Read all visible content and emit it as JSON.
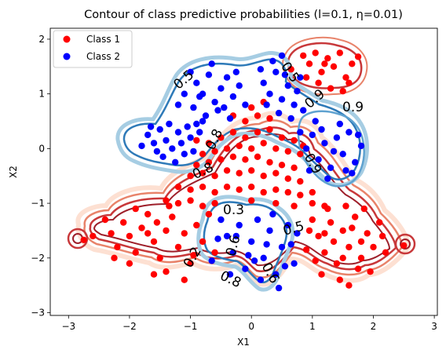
{
  "chart_data": {
    "type": "scatter",
    "title": "Contour of class predictive probabilities (l=0.1, η=0.01)",
    "xlabel": "X1",
    "ylabel": "X2",
    "xlim": [
      -3.3,
      3.05
    ],
    "ylim": [
      -3.05,
      2.2
    ],
    "xticks": [
      -3,
      -2,
      -1,
      0,
      1,
      2,
      3
    ],
    "yticks": [
      -3,
      -2,
      -1,
      0,
      1,
      2
    ],
    "legend_position": "top-left",
    "colors": {
      "class1": "#ff0000",
      "class2": "#0000ff",
      "contour_red": [
        "#fde0d2",
        "#f7b89c",
        "#e8836a",
        "#c8383a",
        "#9e1f2a"
      ],
      "contour_blue": [
        "#dbe9f6",
        "#a6cde3",
        "#5fa2d0",
        "#2e7ab8",
        "#0c4a8c"
      ]
    },
    "series": [
      {
        "name": "Class 1",
        "color": "#ff0000",
        "points": [
          [
            -0.9,
            0.15
          ],
          [
            -0.7,
            0.1
          ],
          [
            -0.5,
            0.2
          ],
          [
            -0.3,
            0.3
          ],
          [
            -0.1,
            0.2
          ],
          [
            0.1,
            0.3
          ],
          [
            0.3,
            0.35
          ],
          [
            0.5,
            0.2
          ],
          [
            0.7,
            0.15
          ],
          [
            0.85,
            0.05
          ],
          [
            -0.8,
            -0.1
          ],
          [
            -0.6,
            -0.05
          ],
          [
            -0.4,
            0.0
          ],
          [
            -0.2,
            0.05
          ],
          [
            0.0,
            0.0
          ],
          [
            0.2,
            0.1
          ],
          [
            0.4,
            0.0
          ],
          [
            0.6,
            -0.05
          ],
          [
            0.8,
            -0.1
          ],
          [
            -0.9,
            -0.3
          ],
          [
            -0.7,
            -0.25
          ],
          [
            -0.5,
            -0.2
          ],
          [
            -0.3,
            -0.15
          ],
          [
            -0.1,
            -0.2
          ],
          [
            0.1,
            -0.15
          ],
          [
            0.3,
            -0.25
          ],
          [
            0.5,
            -0.3
          ],
          [
            0.7,
            -0.35
          ],
          [
            -1.0,
            -0.5
          ],
          [
            -0.8,
            -0.45
          ],
          [
            -0.6,
            -0.5
          ],
          [
            -0.4,
            -0.4
          ],
          [
            -0.2,
            -0.45
          ],
          [
            0.0,
            -0.4
          ],
          [
            0.2,
            -0.5
          ],
          [
            0.4,
            -0.45
          ],
          [
            0.6,
            -0.55
          ],
          [
            0.8,
            -0.6
          ],
          [
            -1.2,
            -0.7
          ],
          [
            -1.0,
            -0.75
          ],
          [
            -0.8,
            -0.7
          ],
          [
            -0.6,
            -0.8
          ],
          [
            -0.4,
            -0.7
          ],
          [
            -0.2,
            -0.75
          ],
          [
            0.0,
            -0.7
          ],
          [
            0.2,
            -0.8
          ],
          [
            0.4,
            -0.75
          ],
          [
            0.6,
            -0.8
          ],
          [
            0.8,
            -0.85
          ],
          [
            1.0,
            -0.8
          ],
          [
            -1.4,
            -0.95
          ],
          [
            -1.2,
            -1.0
          ],
          [
            -1.0,
            -0.95
          ],
          [
            -0.8,
            -1.05
          ],
          [
            -0.6,
            -1.0
          ],
          [
            0.0,
            -0.95
          ],
          [
            0.4,
            -1.0
          ],
          [
            0.7,
            -1.05
          ],
          [
            1.0,
            -1.0
          ],
          [
            1.2,
            -1.05
          ],
          [
            -0.1,
            0.5
          ],
          [
            0.1,
            0.6
          ],
          [
            0.3,
            0.55
          ],
          [
            -0.3,
            0.6
          ],
          [
            0.0,
            0.75
          ],
          [
            0.2,
            0.85
          ],
          [
            -2.6,
            -1.6
          ],
          [
            -2.4,
            -1.3
          ],
          [
            -2.3,
            -1.55
          ],
          [
            -2.2,
            -1.8
          ],
          [
            -2.1,
            -1.35
          ],
          [
            -2.0,
            -1.6
          ],
          [
            -1.9,
            -1.9
          ],
          [
            -1.8,
            -1.45
          ],
          [
            -1.7,
            -1.2
          ],
          [
            -1.6,
            -1.7
          ],
          [
            -1.5,
            -2.0
          ],
          [
            -1.4,
            -1.5
          ],
          [
            -1.3,
            -1.25
          ],
          [
            -1.2,
            -1.8
          ],
          [
            -1.1,
            -1.55
          ],
          [
            -1.0,
            -2.1
          ],
          [
            -0.9,
            -1.4
          ],
          [
            -0.8,
            -1.7
          ],
          [
            -0.7,
            -1.2
          ],
          [
            -1.6,
            -2.3
          ],
          [
            -1.9,
            -1.1
          ],
          [
            -2.0,
            -2.1
          ],
          [
            -1.4,
            -2.25
          ],
          [
            -1.1,
            -2.4
          ],
          [
            -0.6,
            -1.9
          ],
          [
            -1.7,
            -1.55
          ],
          [
            -1.35,
            -1.05
          ],
          [
            -2.25,
            -2.0
          ],
          [
            -1.55,
            -1.35
          ],
          [
            -0.95,
            -1.95
          ],
          [
            -2.75,
            -1.67
          ],
          [
            2.5,
            -1.77
          ],
          [
            1.0,
            -1.3
          ],
          [
            1.1,
            -1.6
          ],
          [
            1.2,
            -1.9
          ],
          [
            1.3,
            -1.35
          ],
          [
            1.4,
            -2.1
          ],
          [
            1.5,
            -1.5
          ],
          [
            1.6,
            -1.8
          ],
          [
            1.7,
            -1.25
          ],
          [
            1.8,
            -2.0
          ],
          [
            1.9,
            -1.55
          ],
          [
            2.0,
            -1.8
          ],
          [
            2.1,
            -1.35
          ],
          [
            1.15,
            -2.3
          ],
          [
            1.45,
            -2.4
          ],
          [
            1.75,
            -2.2
          ],
          [
            1.25,
            -1.1
          ],
          [
            1.55,
            -1.05
          ],
          [
            1.85,
            -1.1
          ],
          [
            2.15,
            -1.6
          ],
          [
            0.9,
            -1.85
          ],
          [
            1.35,
            -1.7
          ],
          [
            1.65,
            -1.45
          ],
          [
            1.95,
            -2.25
          ],
          [
            1.05,
            -2.05
          ],
          [
            2.2,
            -1.9
          ],
          [
            1.5,
            -2.0
          ],
          [
            0.95,
            -1.5
          ],
          [
            1.2,
            -1.55
          ],
          [
            1.8,
            -1.7
          ],
          [
            1.6,
            -2.5
          ],
          [
            0.85,
            1.7
          ],
          [
            0.95,
            1.55
          ],
          [
            1.05,
            1.75
          ],
          [
            1.15,
            1.4
          ],
          [
            1.25,
            1.65
          ],
          [
            1.35,
            1.5
          ],
          [
            1.45,
            1.75
          ],
          [
            1.55,
            1.3
          ],
          [
            1.65,
            1.55
          ],
          [
            1.75,
            1.68
          ],
          [
            1.1,
            1.2
          ],
          [
            1.3,
            1.1
          ],
          [
            1.5,
            1.05
          ],
          [
            0.9,
            1.3
          ],
          [
            1.2,
            1.55
          ],
          [
            0.65,
            1.45
          ],
          [
            1.6,
            1.2
          ]
        ]
      },
      {
        "name": "Class 2",
        "color": "#0000ff",
        "points": [
          [
            -1.5,
            0.35
          ],
          [
            -1.4,
            0.15
          ],
          [
            -1.3,
            0.0
          ],
          [
            -1.2,
            0.3
          ],
          [
            -1.1,
            -0.1
          ],
          [
            -1.0,
            0.2
          ],
          [
            -0.9,
            0.45
          ],
          [
            -1.6,
            0.1
          ],
          [
            -1.7,
            0.25
          ],
          [
            -1.8,
            0.05
          ],
          [
            -1.25,
            -0.25
          ],
          [
            -0.95,
            -0.05
          ],
          [
            -1.45,
            -0.15
          ],
          [
            -1.05,
            0.4
          ],
          [
            -1.35,
            0.45
          ],
          [
            -0.85,
            0.3
          ],
          [
            -1.55,
            -0.05
          ],
          [
            -1.15,
            0.1
          ],
          [
            -0.8,
            0.5
          ],
          [
            -1.65,
            0.4
          ],
          [
            -1.0,
            1.4
          ],
          [
            -0.9,
            1.2
          ],
          [
            -0.8,
            1.0
          ],
          [
            -0.7,
            1.35
          ],
          [
            -0.6,
            0.85
          ],
          [
            -0.5,
            1.1
          ],
          [
            -0.4,
            1.3
          ],
          [
            -0.3,
            0.95
          ],
          [
            -0.2,
            1.15
          ],
          [
            -0.1,
            0.8
          ],
          [
            -0.95,
            0.75
          ],
          [
            -0.75,
            0.6
          ],
          [
            -0.55,
            0.7
          ],
          [
            -0.35,
            0.55
          ],
          [
            -1.1,
            1.0
          ],
          [
            -0.65,
            1.55
          ],
          [
            -0.45,
            0.75
          ],
          [
            -0.25,
            1.4
          ],
          [
            -0.85,
            0.95
          ],
          [
            -1.2,
            0.8
          ],
          [
            0.2,
            1.2
          ],
          [
            0.3,
            1.0
          ],
          [
            0.4,
            1.4
          ],
          [
            0.5,
            0.9
          ],
          [
            0.6,
            1.15
          ],
          [
            0.7,
            0.8
          ],
          [
            0.8,
            1.3
          ],
          [
            0.45,
            0.65
          ],
          [
            0.35,
            1.6
          ],
          [
            0.65,
            0.55
          ],
          [
            0.55,
            1.35
          ],
          [
            0.25,
            0.8
          ],
          [
            0.75,
            1.05
          ],
          [
            0.85,
            0.7
          ],
          [
            0.5,
            1.7
          ],
          [
            0.15,
            1.45
          ],
          [
            0.8,
            0.3
          ],
          [
            0.9,
            0.0
          ],
          [
            1.0,
            0.25
          ],
          [
            1.1,
            -0.2
          ],
          [
            1.2,
            0.1
          ],
          [
            1.3,
            -0.35
          ],
          [
            1.4,
            0.2
          ],
          [
            1.5,
            -0.1
          ],
          [
            1.6,
            0.3
          ],
          [
            1.7,
            -0.25
          ],
          [
            1.8,
            0.05
          ],
          [
            1.05,
            0.5
          ],
          [
            1.25,
            -0.55
          ],
          [
            1.45,
            0.45
          ],
          [
            1.65,
            -0.45
          ],
          [
            0.95,
            -0.4
          ],
          [
            1.35,
            -0.05
          ],
          [
            1.15,
            0.35
          ],
          [
            1.55,
            -0.4
          ],
          [
            1.75,
            0.25
          ],
          [
            -0.5,
            -1.3
          ],
          [
            -0.4,
            -1.6
          ],
          [
            -0.3,
            -1.9
          ],
          [
            -0.2,
            -1.4
          ],
          [
            -0.1,
            -2.2
          ],
          [
            0.0,
            -1.7
          ],
          [
            0.1,
            -1.3
          ],
          [
            0.2,
            -2.0
          ],
          [
            0.3,
            -1.5
          ],
          [
            0.4,
            -2.3
          ],
          [
            0.5,
            -1.8
          ],
          [
            0.6,
            -1.4
          ],
          [
            0.7,
            -2.1
          ],
          [
            -0.35,
            -2.3
          ],
          [
            0.15,
            -2.4
          ],
          [
            0.45,
            -2.55
          ],
          [
            -0.05,
            -1.95
          ],
          [
            0.25,
            -1.75
          ],
          [
            0.55,
            -2.15
          ],
          [
            -0.55,
            -1.65
          ],
          [
            0.35,
            -1.2
          ],
          [
            0.05,
            -2.05
          ],
          [
            -0.25,
            -1.6
          ],
          [
            0.65,
            -1.75
          ],
          [
            -0.65,
            -2.05
          ],
          [
            0.75,
            -1.55
          ]
        ]
      }
    ],
    "contour_labels": [
      "0.5",
      "0.5",
      "0.9",
      "0.9",
      "0.8",
      "0.9",
      "0.8",
      "0.3",
      "0.5",
      "0.6",
      "0.2",
      "0.8",
      "0.6"
    ]
  }
}
